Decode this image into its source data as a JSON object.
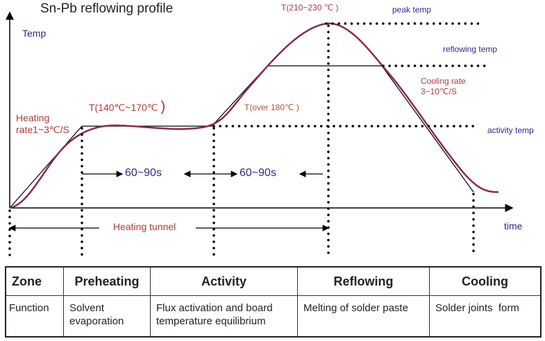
{
  "title": "Sn-Pb reflowing profile",
  "y_axis_label": "Temp",
  "x_axis_label": "time",
  "annotations": {
    "heating_rate_line1": "Heating",
    "heating_rate_line2": "rate1~3℃/S",
    "preheat_temp": "T(140℃~170℃",
    "preheat_paren": ")",
    "activity_temp_range": "T(over 180℃ )",
    "peak_temp_range": "T(210~230 ℃ )",
    "peak_temp": "peak temp",
    "reflowing_temp": "reflowing temp",
    "cooling_rate_line1": "Cooling rate",
    "cooling_rate_line2": "3~10℃/S",
    "activity_temp": "activity temp",
    "duration_1": "60~90s",
    "duration_2": "60~90s",
    "heating_tunnel": "Heating tunnel"
  },
  "table": {
    "header": [
      "Zone",
      "Preheating",
      "Activity",
      "Reflowing",
      "Cooling"
    ],
    "row": [
      "Function",
      "Solvent evaporation",
      "Flux activation and board temperature equilibrium",
      "Melting of solder paste",
      "Solder joints  form"
    ]
  },
  "colors": {
    "curve": "#8b2a4a",
    "red_text": "#b03a3a",
    "blue_text": "#2a2a8c"
  }
}
